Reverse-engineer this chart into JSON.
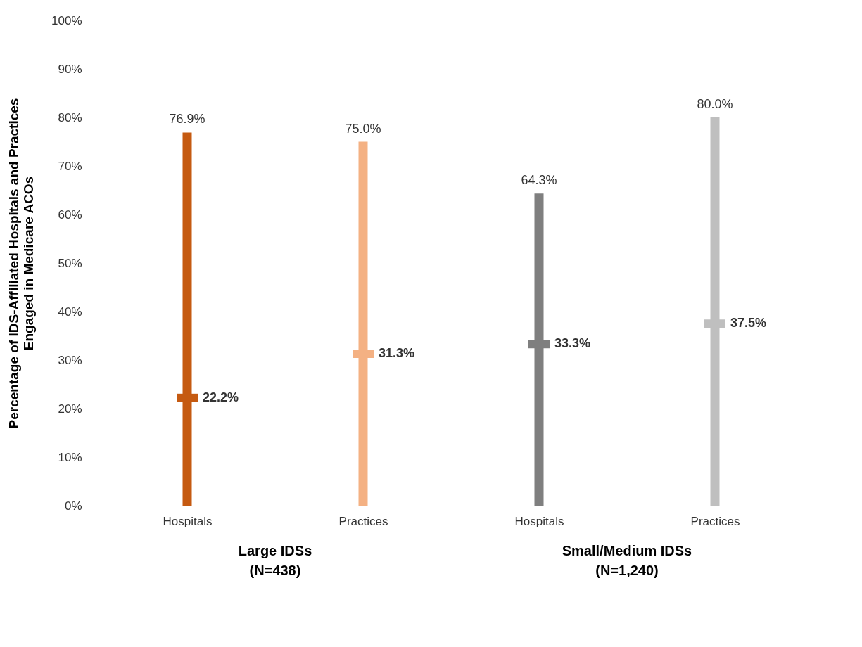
{
  "chart_data": {
    "type": "bar",
    "ylabel": "Percentage of IDS-Affiliated Hospitals and Practices\nEngaged in Medicare ACOs",
    "categories": [
      "Hospitals",
      "Practices",
      "Hospitals",
      "Practices"
    ],
    "series": [
      {
        "colors": [
          "#c55a11",
          "#f4b183",
          "#7f7f7f",
          "#bfbfbf"
        ],
        "values": [
          76.9,
          75.0,
          64.3,
          80.0
        ],
        "value_labels": [
          "76.9%",
          "75.0%",
          "64.3%",
          "80.0%"
        ]
      },
      {
        "type": "scatter",
        "marker": "square",
        "colors": [
          "#c55a11",
          "#f4b183",
          "#7f7f7f",
          "#bfbfbf"
        ],
        "values": [
          22.2,
          31.3,
          33.3,
          37.5
        ],
        "value_labels": [
          "22.2%",
          "31.3%",
          "33.3%",
          "37.5%"
        ]
      }
    ],
    "ylim": [
      0,
      100
    ],
    "yticks": [
      {
        "value": 0,
        "label": "0%"
      },
      {
        "value": 10,
        "label": "10%"
      },
      {
        "value": 20,
        "label": "20%"
      },
      {
        "value": 30,
        "label": "30%"
      },
      {
        "value": 40,
        "label": "40%"
      },
      {
        "value": 50,
        "label": "50%"
      },
      {
        "value": 60,
        "label": "60%"
      },
      {
        "value": 70,
        "label": "70%"
      },
      {
        "value": 80,
        "label": "80%"
      },
      {
        "value": 90,
        "label": "90%"
      },
      {
        "value": 100,
        "label": "100%"
      }
    ],
    "annotations": [
      "Large IDSs\n(N=438)",
      "Small/Medium IDSs\n(N=1,240)"
    ]
  }
}
